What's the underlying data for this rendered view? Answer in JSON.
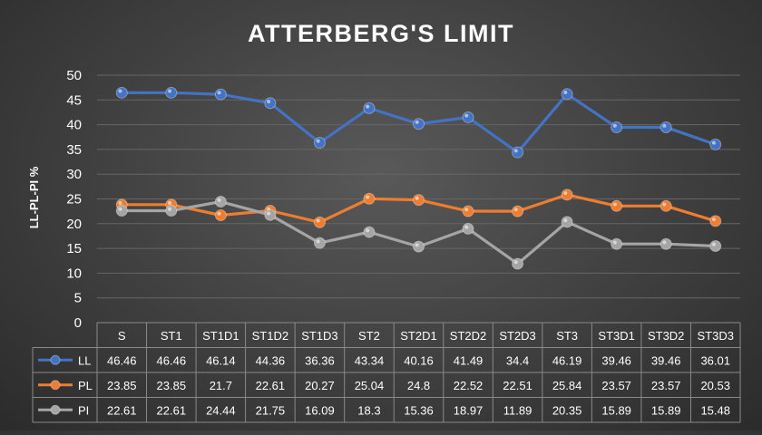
{
  "chart_data": {
    "type": "line",
    "title": "ATTERBERG'S LIMIT",
    "ylabel": "LL-PL-PI %",
    "xlabel": "",
    "ylim": [
      0,
      50
    ],
    "yticks": [
      0,
      5,
      10,
      15,
      20,
      25,
      30,
      35,
      40,
      45,
      50
    ],
    "grid": true,
    "legend": "data-table-left",
    "categories": [
      "S",
      "ST1",
      "ST1D1",
      "ST1D2",
      "ST1D3",
      "ST2",
      "ST2D1",
      "ST2D2",
      "ST2D3",
      "ST3",
      "ST3D1",
      "ST3D2",
      "ST3D3"
    ],
    "series": [
      {
        "name": "LL",
        "color": "#4472c4",
        "values": [
          46.46,
          46.46,
          46.14,
          44.36,
          36.36,
          43.34,
          40.16,
          41.49,
          34.4,
          46.19,
          39.46,
          39.46,
          36.01
        ]
      },
      {
        "name": "PL",
        "color": "#ed7d31",
        "values": [
          23.85,
          23.85,
          21.7,
          22.61,
          20.27,
          25.04,
          24.8,
          22.52,
          22.51,
          25.84,
          23.57,
          23.57,
          20.53
        ]
      },
      {
        "name": "PI",
        "color": "#a5a5a5",
        "values": [
          22.61,
          22.61,
          24.44,
          21.75,
          16.09,
          18.3,
          15.36,
          18.97,
          11.89,
          20.35,
          15.89,
          15.89,
          15.48
        ]
      }
    ]
  }
}
